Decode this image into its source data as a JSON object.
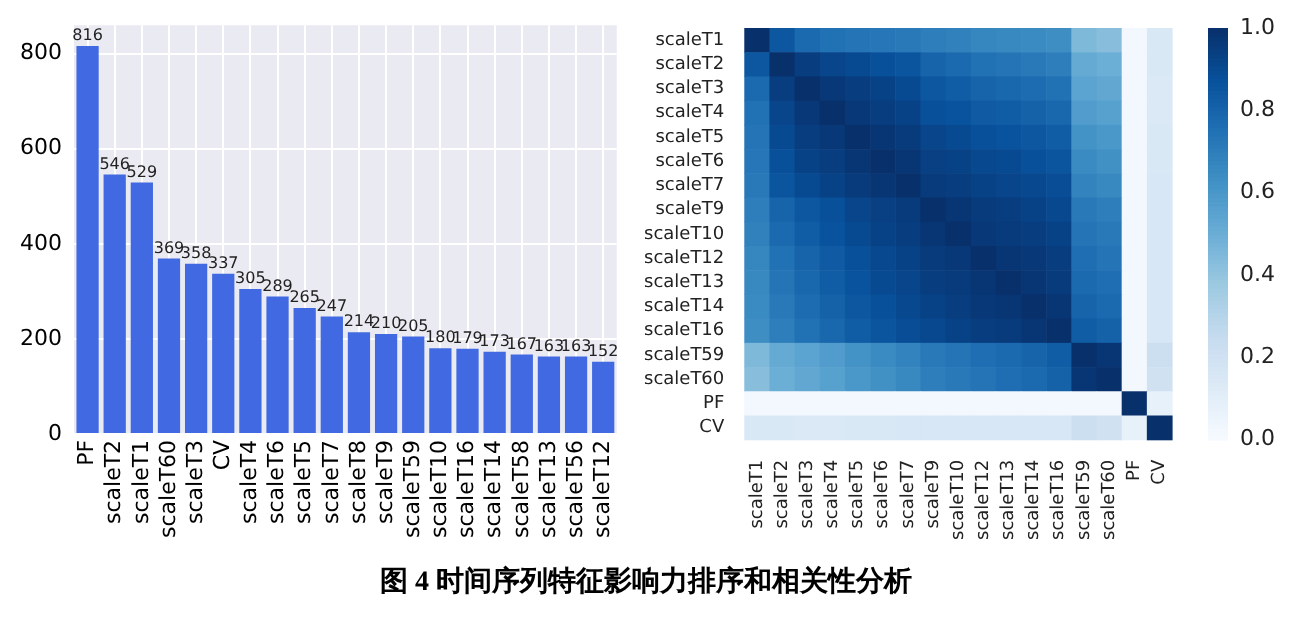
{
  "chart_data": [
    {
      "type": "bar",
      "categories": [
        "PF",
        "scaleT2",
        "scaleT1",
        "scaleT60",
        "scaleT3",
        "CV",
        "scaleT4",
        "scaleT6",
        "scaleT5",
        "scaleT7",
        "scaleT8",
        "scaleT9",
        "scaleT59",
        "scaleT10",
        "scaleT16",
        "scaleT14",
        "scaleT58",
        "scaleT13",
        "scaleT56",
        "scaleT12"
      ],
      "values": [
        816,
        546,
        529,
        369,
        358,
        337,
        305,
        289,
        265,
        247,
        214,
        210,
        205,
        180,
        179,
        173,
        167,
        163,
        163,
        152
      ],
      "color": "#4169e1",
      "ylim": [
        0,
        860
      ],
      "yticks": [
        0,
        200,
        400,
        600,
        800
      ],
      "grid": true,
      "data_labels": true,
      "annotations": [
        "图 4  时间序列特征影响力排序和相关性分析"
      ]
    },
    {
      "type": "heatmap",
      "categories": [
        "scaleT1",
        "scaleT2",
        "scaleT3",
        "scaleT4",
        "scaleT5",
        "scaleT6",
        "scaleT7",
        "scaleT9",
        "scaleT10",
        "scaleT12",
        "scaleT13",
        "scaleT14",
        "scaleT16",
        "scaleT59",
        "scaleT60",
        "PF",
        "CV"
      ],
      "y_categories": [
        "scaleT1",
        "scaleT2",
        "scaleT3",
        "scaleT4",
        "scaleT5",
        "scaleT6",
        "scaleT7",
        "scaleT9",
        "scaleT10",
        "scaleT12",
        "scaleT13",
        "scaleT14",
        "scaleT16",
        "scaleT59",
        "scaleT60",
        "PF",
        "CV"
      ],
      "cells": [
        [
          1,
          0.85,
          0.78,
          0.75,
          0.74,
          0.73,
          0.72,
          0.7,
          0.69,
          0.67,
          0.66,
          0.65,
          0.64,
          0.45,
          0.43,
          0.02,
          0.15
        ],
        [
          0.85,
          1,
          0.95,
          0.92,
          0.9,
          0.88,
          0.86,
          0.8,
          0.78,
          0.75,
          0.74,
          0.72,
          0.7,
          0.52,
          0.5,
          0.02,
          0.15
        ],
        [
          0.78,
          0.95,
          1,
          0.97,
          0.95,
          0.93,
          0.9,
          0.85,
          0.83,
          0.8,
          0.79,
          0.77,
          0.75,
          0.55,
          0.53,
          0.02,
          0.14
        ],
        [
          0.75,
          0.92,
          0.97,
          1,
          0.97,
          0.95,
          0.93,
          0.88,
          0.87,
          0.84,
          0.83,
          0.81,
          0.79,
          0.58,
          0.56,
          0.02,
          0.14
        ],
        [
          0.74,
          0.9,
          0.95,
          0.97,
          1,
          0.98,
          0.96,
          0.92,
          0.9,
          0.88,
          0.87,
          0.85,
          0.83,
          0.62,
          0.6,
          0.02,
          0.15
        ],
        [
          0.73,
          0.88,
          0.93,
          0.95,
          0.98,
          1,
          0.98,
          0.94,
          0.93,
          0.91,
          0.9,
          0.88,
          0.86,
          0.65,
          0.63,
          0.02,
          0.15
        ],
        [
          0.72,
          0.86,
          0.9,
          0.93,
          0.96,
          0.98,
          1,
          0.96,
          0.95,
          0.93,
          0.92,
          0.91,
          0.89,
          0.68,
          0.66,
          0.02,
          0.16
        ],
        [
          0.7,
          0.8,
          0.85,
          0.88,
          0.92,
          0.94,
          0.96,
          1,
          0.98,
          0.96,
          0.95,
          0.93,
          0.91,
          0.72,
          0.7,
          0.02,
          0.16
        ],
        [
          0.69,
          0.78,
          0.83,
          0.87,
          0.9,
          0.93,
          0.95,
          0.98,
          1,
          0.97,
          0.96,
          0.95,
          0.93,
          0.74,
          0.72,
          0.02,
          0.16
        ],
        [
          0.67,
          0.75,
          0.8,
          0.84,
          0.88,
          0.91,
          0.93,
          0.96,
          0.97,
          1,
          0.98,
          0.97,
          0.95,
          0.76,
          0.74,
          0.02,
          0.16
        ],
        [
          0.66,
          0.74,
          0.79,
          0.83,
          0.87,
          0.9,
          0.92,
          0.95,
          0.96,
          0.98,
          1,
          0.98,
          0.96,
          0.78,
          0.76,
          0.02,
          0.16
        ],
        [
          0.65,
          0.72,
          0.77,
          0.81,
          0.85,
          0.88,
          0.91,
          0.93,
          0.95,
          0.97,
          0.98,
          1,
          0.98,
          0.8,
          0.78,
          0.02,
          0.16
        ],
        [
          0.64,
          0.7,
          0.75,
          0.79,
          0.83,
          0.86,
          0.89,
          0.91,
          0.93,
          0.95,
          0.96,
          0.98,
          1,
          0.83,
          0.81,
          0.02,
          0.16
        ],
        [
          0.45,
          0.52,
          0.55,
          0.58,
          0.62,
          0.65,
          0.68,
          0.72,
          0.74,
          0.76,
          0.78,
          0.8,
          0.83,
          1,
          0.98,
          0.02,
          0.22
        ],
        [
          0.43,
          0.5,
          0.53,
          0.56,
          0.6,
          0.63,
          0.66,
          0.7,
          0.72,
          0.74,
          0.76,
          0.78,
          0.81,
          0.98,
          1,
          0.02,
          0.2
        ],
        [
          0.02,
          0.02,
          0.02,
          0.02,
          0.02,
          0.02,
          0.02,
          0.02,
          0.02,
          0.02,
          0.02,
          0.02,
          0.02,
          0.02,
          0.02,
          1,
          0.08
        ],
        [
          0.15,
          0.15,
          0.14,
          0.14,
          0.15,
          0.15,
          0.16,
          0.16,
          0.16,
          0.16,
          0.16,
          0.16,
          0.16,
          0.22,
          0.2,
          0.08,
          1
        ]
      ],
      "clim": [
        0,
        1
      ],
      "cticks": [
        {
          "value": 0,
          "label": "0.0"
        },
        {
          "value": 0.2,
          "label": "0.2"
        },
        {
          "value": 0.4,
          "label": "0.4"
        },
        {
          "value": 0.6,
          "label": "0.6"
        },
        {
          "value": 0.8,
          "label": "0.8"
        },
        {
          "value": 1,
          "label": "1.0"
        }
      ]
    }
  ]
}
